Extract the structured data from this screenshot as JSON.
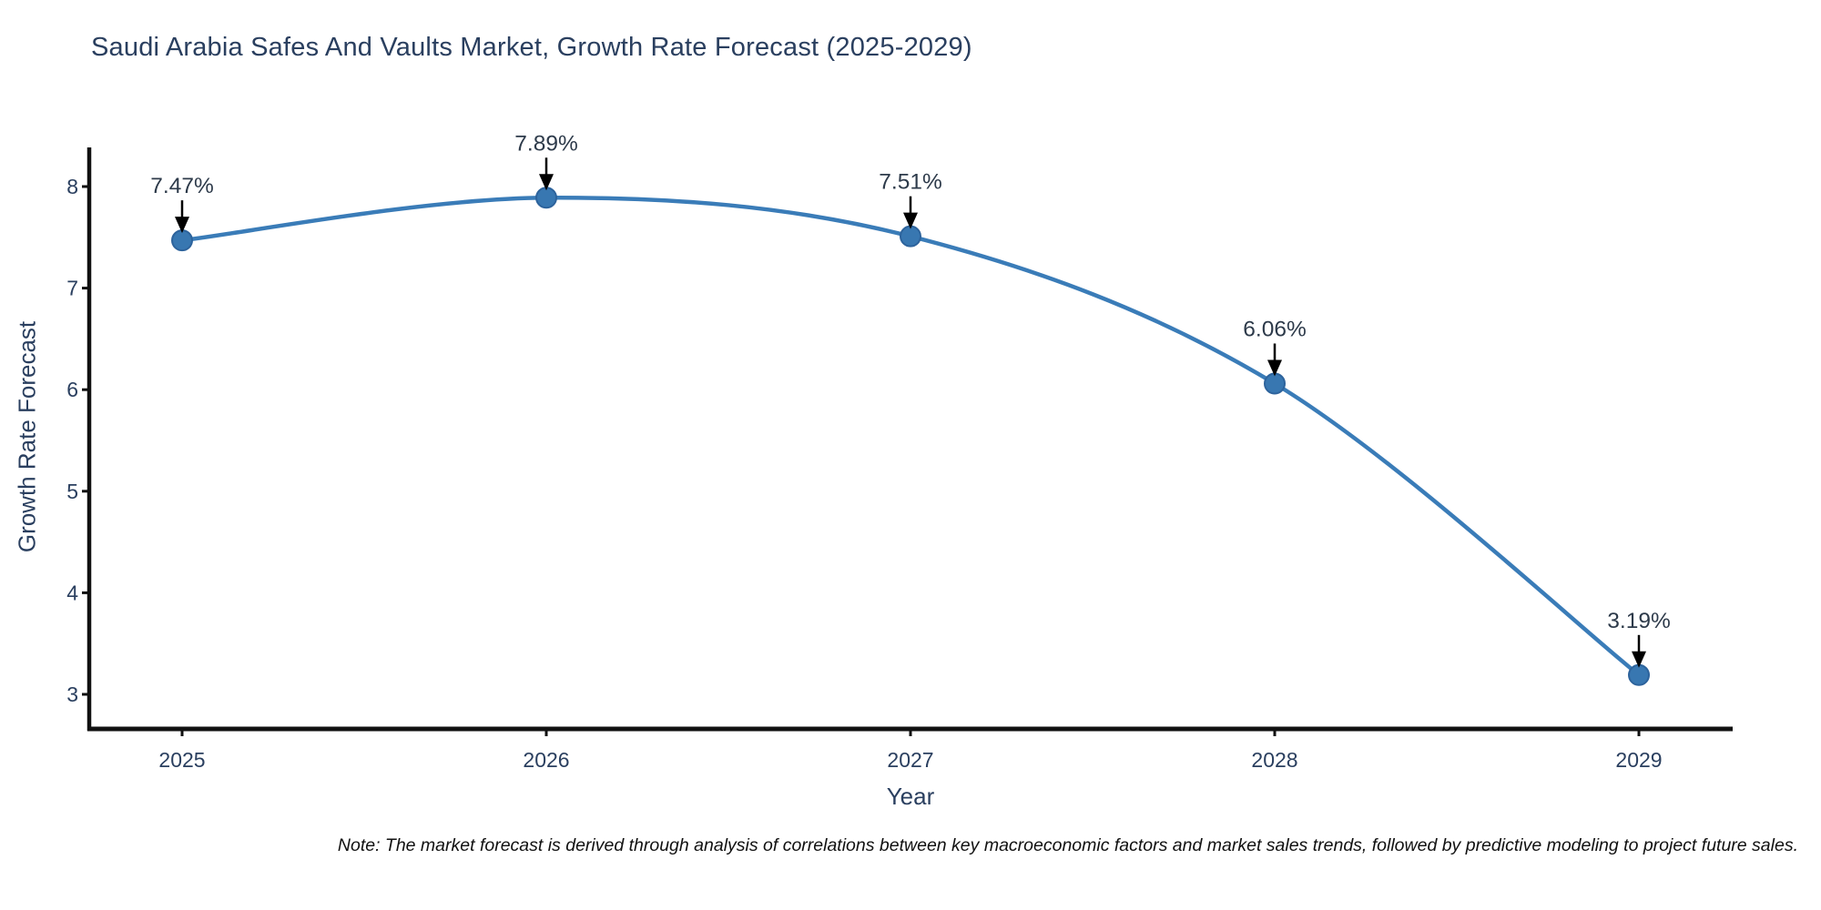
{
  "chart": {
    "title": "Saudi Arabia Safes And Vaults Market, Growth Rate Forecast (2025-2029)",
    "xlabel": "Year",
    "ylabel": "Growth Rate Forecast",
    "note": "Note: The market forecast is derived through analysis of correlations between key macroeconomic factors and market sales trends, followed by predictive modeling to project future sales."
  },
  "chart_data": {
    "type": "line",
    "title": "Saudi Arabia Safes And Vaults Market, Growth Rate Forecast (2025-2029)",
    "xlabel": "Year",
    "ylabel": "Growth Rate Forecast",
    "categories": [
      "2025",
      "2026",
      "2027",
      "2028",
      "2029"
    ],
    "x": [
      2025,
      2026,
      2027,
      2028,
      2029
    ],
    "values": [
      7.47,
      7.89,
      7.51,
      6.06,
      3.19
    ],
    "point_labels": [
      "7.47%",
      "7.89%",
      "7.51%",
      "6.06%",
      "3.19%"
    ],
    "yticks": [
      3,
      4,
      5,
      6,
      7,
      8
    ],
    "ytick_labels": [
      "3",
      "4",
      "5",
      "6",
      "7",
      "8"
    ],
    "ylim": [
      2.67,
      8.39
    ],
    "grid": false,
    "legend_position": "none",
    "colors": {
      "line": "#3a7cb8",
      "marker_fill": "#3877b1",
      "marker_edge": "#2d639c",
      "axis": "#111111",
      "tick_text": "#2a3f5f",
      "annotation_text": "#2d3a4a",
      "arrow": "#000000",
      "background": "#ffffff"
    }
  }
}
